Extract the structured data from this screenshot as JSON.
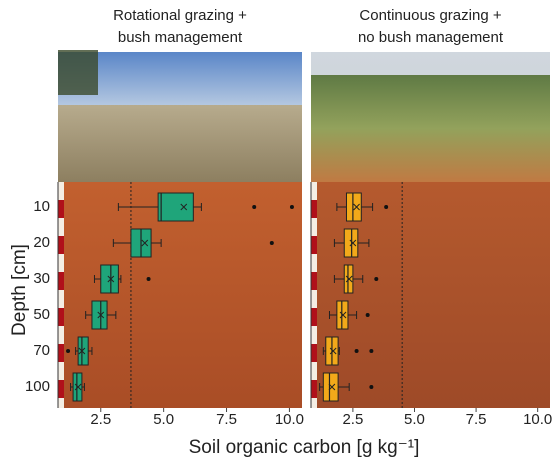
{
  "chart_data": {
    "type": "box",
    "ylabel": "Depth [cm]",
    "xlabel": "Soil organic carbon [g kg⁻¹]",
    "categories": [
      "10",
      "20",
      "30",
      "50",
      "70",
      "100"
    ],
    "xlim": [
      0.8,
      10.5
    ],
    "xticks": [
      2.5,
      {
        "value": 5,
        "label": "5.0"
      },
      7.5,
      {
        "value": 10,
        "label": "10.0"
      }
    ],
    "panels": [
      {
        "title": [
          "Rotational grazing +",
          "bush management"
        ],
        "color": "#1fa57a",
        "reference_line": 3.7,
        "boxes": [
          {
            "min": 3.2,
            "q1": 4.78,
            "median": 4.9,
            "q3": 6.18,
            "max": 6.5,
            "mean": 5.8,
            "outliers": [
              8.6,
              10.1
            ]
          },
          {
            "min": 3.0,
            "q1": 3.7,
            "median": 4.1,
            "q3": 4.5,
            "max": 4.9,
            "mean": 4.25,
            "outliers": [
              9.3
            ]
          },
          {
            "min": 2.25,
            "q1": 2.5,
            "median": 2.9,
            "q3": 3.2,
            "max": 3.3,
            "mean": 2.9,
            "outliers": [
              4.4
            ]
          },
          {
            "min": 1.9,
            "q1": 2.15,
            "median": 2.5,
            "q3": 2.75,
            "max": 3.1,
            "mean": 2.5,
            "outliers": []
          },
          {
            "min": 1.5,
            "q1": 1.6,
            "median": 1.75,
            "q3": 2.0,
            "max": 2.15,
            "mean": 1.75,
            "outliers": [
              1.2
            ]
          },
          {
            "min": 1.3,
            "q1": 1.4,
            "median": 1.55,
            "q3": 1.75,
            "max": 1.85,
            "mean": 1.6,
            "outliers": []
          }
        ]
      },
      {
        "title": [
          "Continuous grazing +",
          "no bush management"
        ],
        "color": "#f2a91a",
        "reference_line": 4.5,
        "boxes": [
          {
            "min": 1.85,
            "q1": 2.24,
            "median": 2.5,
            "q3": 2.84,
            "max": 3.3,
            "mean": 2.65,
            "outliers": [
              3.85
            ]
          },
          {
            "min": 1.75,
            "q1": 2.15,
            "median": 2.45,
            "q3": 2.7,
            "max": 3.15,
            "mean": 2.5,
            "outliers": []
          },
          {
            "min": 1.75,
            "q1": 2.15,
            "median": 2.3,
            "q3": 2.5,
            "max": 2.9,
            "mean": 2.35,
            "outliers": [
              3.45
            ]
          },
          {
            "min": 1.55,
            "q1": 1.85,
            "median": 2.05,
            "q3": 2.3,
            "max": 2.65,
            "mean": 2.1,
            "outliers": [
              3.1
            ]
          },
          {
            "min": 1.3,
            "q1": 1.4,
            "median": 1.65,
            "q3": 1.9,
            "max": 1.95,
            "mean": 1.7,
            "outliers": [
              2.65,
              3.25
            ]
          },
          {
            "min": 1.15,
            "q1": 1.3,
            "median": 1.55,
            "q3": 1.9,
            "max": 2.35,
            "mean": 1.65,
            "outliers": [
              3.25
            ]
          }
        ]
      }
    ]
  }
}
